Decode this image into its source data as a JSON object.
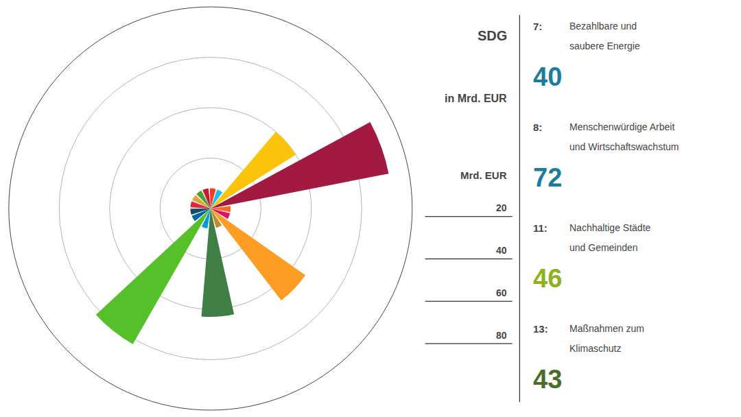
{
  "chart_data": {
    "type": "barpolar",
    "values": [
      8,
      8,
      8,
      8,
      8,
      8,
      40,
      72,
      8,
      8,
      46,
      8,
      43,
      8,
      62,
      8,
      8
    ],
    "colors": [
      "#e5243b",
      "#dda63a",
      "#4c9f38",
      "#c5192d",
      "#ff3a21",
      "#26bde2",
      "#fcc30b",
      "#a21942",
      "#fd6925",
      "#dd1367",
      "#fd9d24",
      "#bf8b2e",
      "#3f7e44",
      "#0a97d9",
      "#56c02b",
      "#00689d",
      "#19486a"
    ],
    "ylim": [
      0,
      80
    ],
    "yticks": [
      20,
      40,
      60,
      80
    ],
    "grid": true,
    "tick_labels": false,
    "annotations": {
      "headers": [
        "SDG",
        "in Mrd. EUR",
        "Mrd. EUR"
      ],
      "items": [
        {
          "label": "7:",
          "lines": [
            "Bezahlbare und",
            "saubere Energie"
          ],
          "value": 40,
          "color": "#1a7d9e"
        },
        {
          "label": "8:",
          "lines": [
            "Menschenwürdige Arbeit",
            "und Wirtschaftswachstum"
          ],
          "value": 72,
          "color": "#1a7d9e"
        },
        {
          "label": "11:",
          "lines": [
            "Nachhaltige Städte",
            "und Gemeinden"
          ],
          "value": 46,
          "color": "#8cb31a"
        },
        {
          "label": "13:",
          "lines": [
            "Maßnahmen zum",
            "Klimaschutz"
          ],
          "value": 43,
          "color": "#4a6e2a"
        }
      ]
    }
  }
}
